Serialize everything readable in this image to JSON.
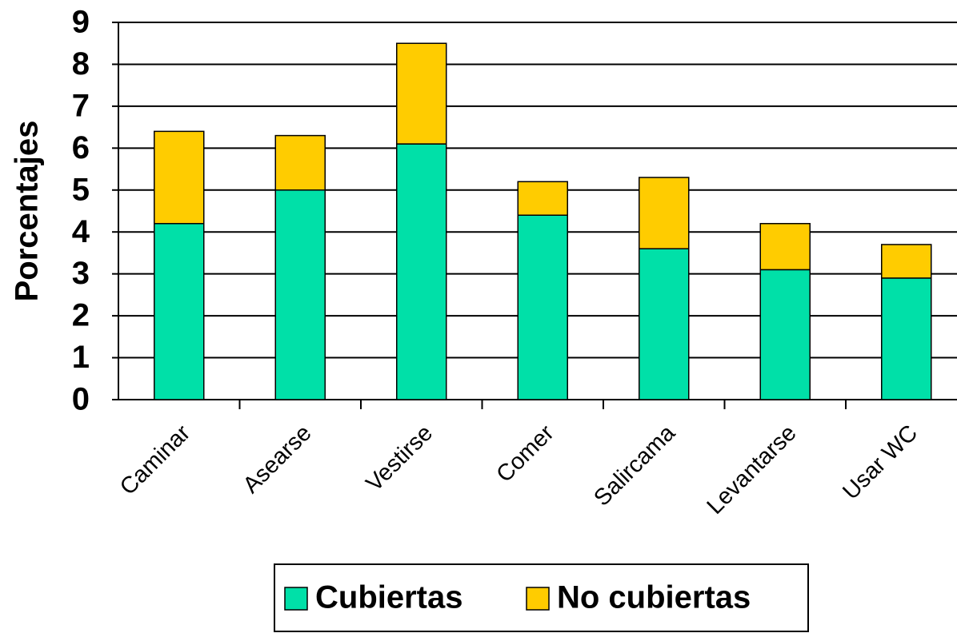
{
  "chart_data": {
    "type": "stacked_bar",
    "y_label": "Porcentajes",
    "categories": [
      "Caminar",
      "Asearse",
      "Vestirse",
      "Comer",
      "Salircama",
      "Levantarse",
      "Usar WC"
    ],
    "series": [
      {
        "name": "Cubiertas",
        "color": "#00e0a8",
        "values": [
          4.2,
          5.0,
          6.1,
          4.4,
          3.6,
          3.1,
          2.9
        ]
      },
      {
        "name": "No cubiertas",
        "color": "#ffcc00",
        "values": [
          2.2,
          1.3,
          2.4,
          0.8,
          1.7,
          1.1,
          0.8
        ]
      }
    ],
    "ylim": [
      0,
      9
    ],
    "yticks": [
      0,
      1,
      2,
      3,
      4,
      5,
      6,
      7,
      8,
      9
    ],
    "grid": true
  }
}
